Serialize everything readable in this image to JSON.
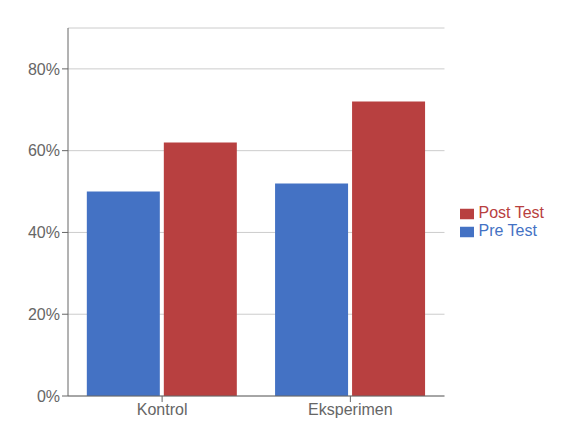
{
  "chart_data": {
    "type": "bar",
    "categories": [
      "Kontrol",
      "Eksperimen"
    ],
    "series": [
      {
        "name": "Pre Test",
        "color": "#4472C4",
        "values": [
          0.5,
          0.52
        ]
      },
      {
        "name": "Post Test",
        "color": "#B84040",
        "values": [
          0.62,
          0.72
        ]
      }
    ],
    "ylim": [
      0,
      0.9
    ],
    "yticks": [
      {
        "value": 0.0,
        "label": "0%"
      },
      {
        "value": 0.2,
        "label": "20%"
      },
      {
        "value": 0.4,
        "label": "40%"
      },
      {
        "value": 0.6,
        "label": "60%"
      },
      {
        "value": 0.8,
        "label": "80%"
      }
    ],
    "grid": true,
    "legend": "right"
  }
}
